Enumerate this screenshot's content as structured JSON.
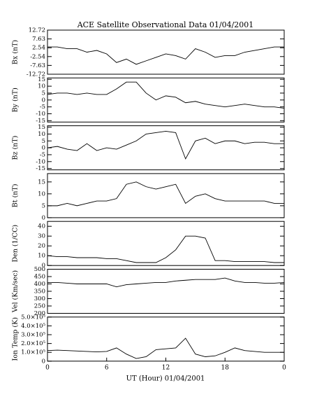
{
  "chart_data": [
    {
      "type": "line",
      "title": "ACE Satellite Observational Data  01/04/2001",
      "ylabel": "Bx (nT)",
      "x": [
        0,
        1,
        2,
        3,
        4,
        5,
        6,
        7,
        8,
        9,
        10,
        11,
        12,
        13,
        14,
        15,
        16,
        17,
        18,
        19,
        20,
        21,
        22,
        23,
        24
      ],
      "values": [
        3,
        3,
        2,
        2,
        0,
        1,
        -1,
        -6,
        -4,
        -7,
        -5,
        -3,
        -1,
        -2,
        -4,
        2,
        0,
        -3,
        -2,
        -2,
        0,
        1,
        2,
        3,
        3
      ],
      "ylim": [
        -12.72,
        12.72
      ],
      "yticks": [
        -12.72,
        -7.63,
        -2.54,
        2.54,
        7.63,
        12.72
      ]
    },
    {
      "type": "line",
      "ylabel": "By (nT)",
      "x": [
        0,
        1,
        2,
        3,
        4,
        5,
        6,
        7,
        8,
        9,
        10,
        11,
        12,
        13,
        14,
        15,
        16,
        17,
        18,
        19,
        20,
        21,
        22,
        23,
        24
      ],
      "values": [
        4,
        5,
        5,
        4,
        5,
        4,
        4,
        8,
        13,
        13,
        5,
        0,
        3,
        2,
        -2,
        -1,
        -3,
        -4,
        -5,
        -4,
        -3,
        -4,
        -5,
        -5,
        -6
      ],
      "ylim": [
        -16,
        16
      ],
      "yticks": [
        -15,
        -10,
        -5,
        0,
        5,
        10,
        15
      ]
    },
    {
      "type": "line",
      "ylabel": "Bz (nT)",
      "x": [
        0,
        1,
        2,
        3,
        4,
        5,
        6,
        7,
        8,
        9,
        10,
        11,
        12,
        13,
        14,
        15,
        16,
        17,
        18,
        19,
        20,
        21,
        22,
        23,
        24
      ],
      "values": [
        0,
        1,
        -1,
        -2,
        3,
        -2,
        0,
        -1,
        2,
        5,
        10,
        11,
        12,
        11,
        -8,
        5,
        7,
        3,
        5,
        5,
        3,
        4,
        4,
        3,
        3
      ],
      "ylim": [
        -16,
        16
      ],
      "yticks": [
        -15,
        -10,
        -5,
        0,
        5,
        10,
        15
      ]
    },
    {
      "type": "line",
      "ylabel": "Bt (nT)",
      "x": [
        0,
        1,
        2,
        3,
        4,
        5,
        6,
        7,
        8,
        9,
        10,
        11,
        12,
        13,
        14,
        15,
        16,
        17,
        18,
        19,
        20,
        21,
        22,
        23,
        24
      ],
      "values": [
        5,
        5,
        6,
        5,
        6,
        7,
        7,
        8,
        14,
        15,
        13,
        12,
        13,
        14,
        6,
        9,
        10,
        8,
        7,
        7,
        7,
        7,
        7,
        6,
        6
      ],
      "ylim": [
        0,
        18.5
      ],
      "yticks": [
        0,
        5,
        10,
        15
      ]
    },
    {
      "type": "line",
      "ylabel": "Den (1/CC)",
      "x": [
        0,
        1,
        2,
        3,
        4,
        5,
        6,
        7,
        8,
        9,
        10,
        11,
        12,
        13,
        14,
        15,
        16,
        17,
        18,
        19,
        20,
        21,
        22,
        23,
        24
      ],
      "values": [
        10,
        9,
        9,
        8,
        8,
        8,
        7,
        7,
        5,
        3,
        3,
        3,
        8,
        16,
        30,
        30,
        28,
        5,
        5,
        4,
        4,
        4,
        4,
        3,
        3
      ],
      "ylim": [
        0,
        45
      ],
      "yticks": [
        0,
        10,
        20,
        30,
        40
      ]
    },
    {
      "type": "line",
      "ylabel": "Vel (Km/sec)",
      "x": [
        0,
        1,
        2,
        3,
        4,
        5,
        6,
        7,
        8,
        9,
        10,
        11,
        12,
        13,
        14,
        15,
        16,
        17,
        18,
        19,
        20,
        21,
        22,
        23,
        24
      ],
      "values": [
        410,
        410,
        405,
        400,
        400,
        400,
        400,
        380,
        395,
        400,
        405,
        410,
        410,
        420,
        425,
        430,
        430,
        430,
        440,
        420,
        410,
        410,
        405,
        405,
        410
      ],
      "ylim": [
        200,
        500
      ],
      "yticks": [
        200,
        250,
        300,
        350,
        400,
        450,
        500
      ]
    },
    {
      "type": "line",
      "ylabel": "Ion Temp (K)",
      "xlabel": "UT (Hour)  01/04/2001",
      "x": [
        0,
        1,
        2,
        3,
        4,
        5,
        6,
        7,
        8,
        9,
        10,
        11,
        12,
        13,
        14,
        15,
        16,
        17,
        18,
        19,
        20,
        21,
        22,
        23,
        24
      ],
      "values": [
        120000,
        125000,
        120000,
        115000,
        110000,
        105000,
        110000,
        150000,
        80000,
        30000,
        50000,
        130000,
        140000,
        150000,
        260000,
        80000,
        50000,
        60000,
        100000,
        150000,
        120000,
        110000,
        100000,
        100000,
        100000
      ],
      "ylim": [
        0,
        500000
      ],
      "yticks": [
        0,
        {
          "value": 100000,
          "label": "1.0×10⁵"
        },
        {
          "value": 200000,
          "label": "2.0×10⁵"
        },
        {
          "value": 300000,
          "label": "3.0×10⁵"
        },
        {
          "value": 400000,
          "label": "4.0×10⁵"
        },
        {
          "value": 500000,
          "label": "5.0×10⁵"
        }
      ],
      "xlim": [
        0,
        24
      ],
      "xticks": [
        0,
        6,
        12,
        18,
        {
          "value": 24,
          "label": "0"
        }
      ]
    }
  ]
}
